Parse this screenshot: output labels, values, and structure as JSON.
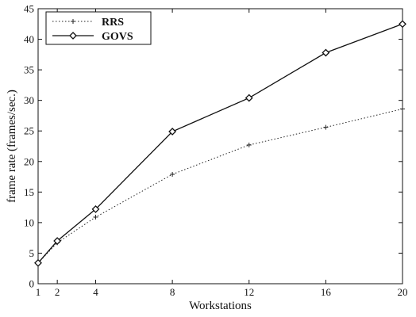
{
  "chart_data": {
    "type": "line",
    "title": "",
    "xlabel": "Workstations",
    "ylabel": "frame rate (frames/sec.)",
    "x": [
      1,
      2,
      4,
      8,
      12,
      16,
      20
    ],
    "x_ticks": [
      "1",
      "2",
      "4",
      "8",
      "12",
      "16",
      "20"
    ],
    "y_ticks": [
      "0",
      "5",
      "10",
      "15",
      "20",
      "25",
      "30",
      "35",
      "40",
      "45"
    ],
    "xlim": [
      1,
      20
    ],
    "ylim": [
      0,
      45
    ],
    "grid": false,
    "legend_position": "top-left",
    "series": [
      {
        "name": "RRS",
        "marker": "plus",
        "line_style": "dotted",
        "color": "#222222",
        "values": [
          3.4,
          6.7,
          10.9,
          17.9,
          22.7,
          25.6,
          28.6
        ]
      },
      {
        "name": "GOVS",
        "marker": "diamond",
        "line_style": "solid",
        "color": "#111111",
        "values": [
          3.4,
          7.0,
          12.2,
          24.9,
          30.4,
          37.8,
          42.5
        ]
      }
    ]
  }
}
